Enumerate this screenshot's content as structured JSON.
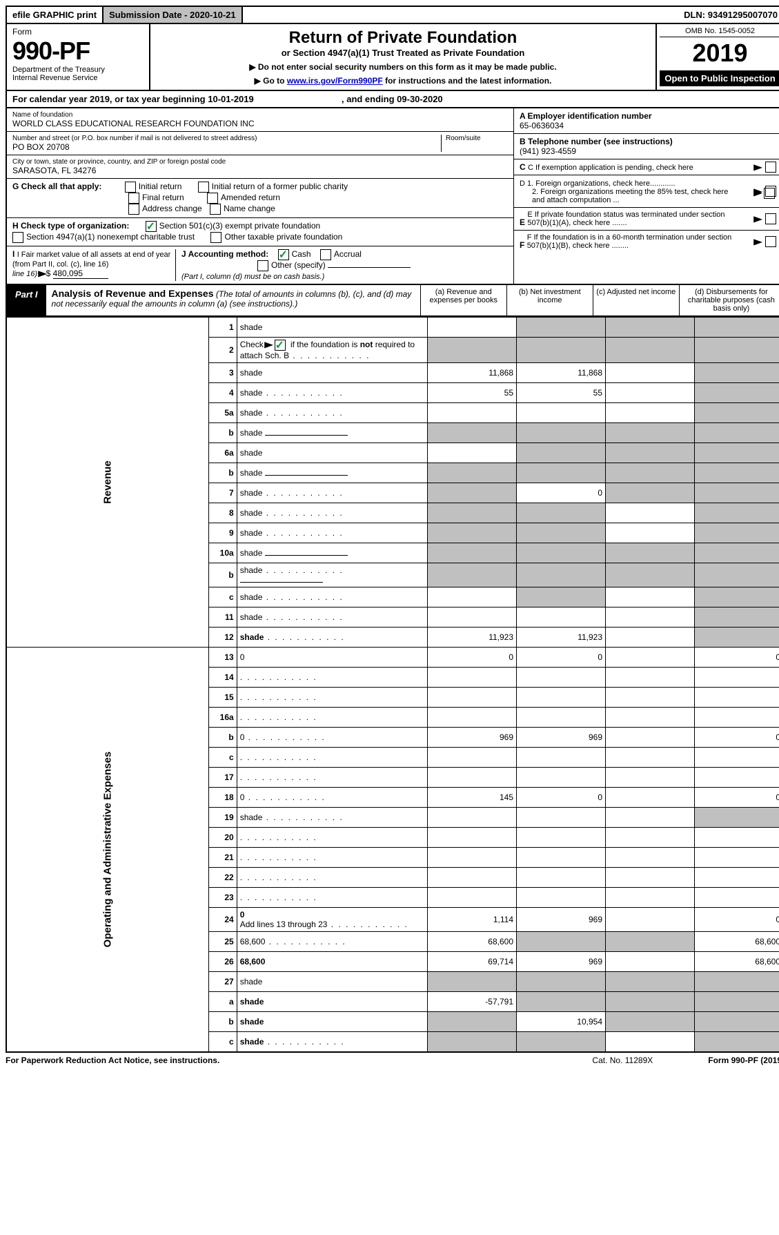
{
  "top": {
    "efile": "efile GRAPHIC print",
    "subdate_label": "Submission Date - ",
    "subdate": "2020-10-21",
    "dln_label": "DLN: ",
    "dln": "93491295007070"
  },
  "header": {
    "form_label": "Form",
    "form_num": "990-PF",
    "dept1": "Department of the Treasury",
    "dept2": "Internal Revenue Service",
    "title": "Return of Private Foundation",
    "sub": "or Section 4947(a)(1) Trust Treated as Private Foundation",
    "instr1": "▶ Do not enter social security numbers on this form as it may be made public.",
    "instr2_pre": "▶ Go to ",
    "instr2_link": "www.irs.gov/Form990PF",
    "instr2_post": " for instructions and the latest information.",
    "omb": "OMB No. 1545-0052",
    "year": "2019",
    "inspect": "Open to Public Inspection"
  },
  "cal": {
    "text_pre": "For calendar year 2019, or tax year beginning ",
    "begin": "10-01-2019",
    "text_mid": " , and ending ",
    "end": "09-30-2020"
  },
  "info": {
    "name_label": "Name of foundation",
    "name": "WORLD CLASS EDUCATIONAL RESEARCH FOUNDATION INC",
    "addr_label": "Number and street (or P.O. box number if mail is not delivered to street address)",
    "room_label": "Room/suite",
    "addr": "PO BOX 20708",
    "city_label": "City or town, state or province, country, and ZIP or foreign postal code",
    "city": "SARASOTA, FL  34276",
    "ein_label": "A Employer identification number",
    "ein": "65-0636034",
    "phone_label": "B Telephone number (see instructions)",
    "phone": "(941) 923-4559",
    "c_label": "C If exemption application is pending, check here",
    "g_label": "G Check all that apply:",
    "g_initial": "Initial return",
    "g_initial_fpc": "Initial return of a former public charity",
    "g_final": "Final return",
    "g_amended": "Amended return",
    "g_addr": "Address change",
    "g_name": "Name change",
    "d1": "D 1. Foreign organizations, check here............",
    "d2": "2. Foreign organizations meeting the 85% test, check here and attach computation ...",
    "h_label": "H Check type of organization:",
    "h_501c3": "Section 501(c)(3) exempt private foundation",
    "h_4947": "Section 4947(a)(1) nonexempt charitable trust",
    "h_other": "Other taxable private foundation",
    "e_label": "E If private foundation status was terminated under section 507(b)(1)(A), check here .......",
    "i_label": "I Fair market value of all assets at end of year (from Part II, col. (c), line 16)",
    "i_val": "480,095",
    "j_label": "J Accounting method:",
    "j_cash": "Cash",
    "j_accrual": "Accrual",
    "j_other": "Other (specify)",
    "j_note": "(Part I, column (d) must be on cash basis.)",
    "f_label": "F If the foundation is in a 60-month termination under section 507(b)(1)(B), check here ........"
  },
  "part1": {
    "badge": "Part I",
    "title": "Analysis of Revenue and Expenses",
    "note": " (The total of amounts in columns (b), (c), and (d) may not necessarily equal the amounts in column (a) (see instructions).)",
    "col_a": "(a)   Revenue and expenses per books",
    "col_b": "(b)  Net investment income",
    "col_c": "(c)  Adjusted net income",
    "col_d": "(d)  Disbursements for charitable purposes (cash basis only)"
  },
  "sections": {
    "revenue": "Revenue",
    "opadmin": "Operating and Administrative Expenses"
  },
  "rows": [
    {
      "n": "1",
      "d": "shade",
      "a": "",
      "b": "shade",
      "c": "shade"
    },
    {
      "n": "2",
      "d": "shade",
      "dots": true,
      "a": "shade",
      "b": "shade",
      "c": "shade",
      "bold_not": true
    },
    {
      "n": "3",
      "d": "shade",
      "a": "11,868",
      "b": "11,868",
      "c": ""
    },
    {
      "n": "4",
      "d": "shade",
      "dots": true,
      "a": "55",
      "b": "55",
      "c": ""
    },
    {
      "n": "5a",
      "d": "shade",
      "dots": true,
      "a": "",
      "b": "",
      "c": ""
    },
    {
      "n": "b",
      "d": "shade",
      "underline": true,
      "a": "shade",
      "b": "shade",
      "c": "shade"
    },
    {
      "n": "6a",
      "d": "shade",
      "a": "",
      "b": "shade",
      "c": "shade"
    },
    {
      "n": "b",
      "d": "shade",
      "underline": true,
      "a": "shade",
      "b": "shade",
      "c": "shade"
    },
    {
      "n": "7",
      "d": "shade",
      "dots": true,
      "a": "shade",
      "b": "0",
      "c": "shade"
    },
    {
      "n": "8",
      "d": "shade",
      "dots": true,
      "a": "shade",
      "b": "shade",
      "c": ""
    },
    {
      "n": "9",
      "d": "shade",
      "dots": true,
      "a": "shade",
      "b": "shade",
      "c": ""
    },
    {
      "n": "10a",
      "d": "shade",
      "underline": true,
      "a": "shade",
      "b": "shade",
      "c": "shade"
    },
    {
      "n": "b",
      "d": "shade",
      "dots": true,
      "underline": true,
      "a": "shade",
      "b": "shade",
      "c": "shade"
    },
    {
      "n": "c",
      "d": "shade",
      "dots": true,
      "a": "",
      "b": "shade",
      "c": ""
    },
    {
      "n": "11",
      "d": "shade",
      "dots": true,
      "a": "",
      "b": "",
      "c": ""
    },
    {
      "n": "12",
      "d": "shade",
      "dots": true,
      "bold": true,
      "a": "11,923",
      "b": "11,923",
      "c": ""
    }
  ],
  "rows2": [
    {
      "n": "13",
      "d": "0",
      "a": "0",
      "b": "0",
      "c": ""
    },
    {
      "n": "14",
      "d": "",
      "dots": true,
      "a": "",
      "b": "",
      "c": ""
    },
    {
      "n": "15",
      "d": "",
      "dots": true,
      "a": "",
      "b": "",
      "c": ""
    },
    {
      "n": "16a",
      "d": "",
      "dots": true,
      "a": "",
      "b": "",
      "c": ""
    },
    {
      "n": "b",
      "d": "0",
      "dots": true,
      "a": "969",
      "b": "969",
      "c": ""
    },
    {
      "n": "c",
      "d": "",
      "dots": true,
      "a": "",
      "b": "",
      "c": ""
    },
    {
      "n": "17",
      "d": "",
      "dots": true,
      "a": "",
      "b": "",
      "c": ""
    },
    {
      "n": "18",
      "d": "0",
      "dots": true,
      "a": "145",
      "b": "0",
      "c": ""
    },
    {
      "n": "19",
      "d": "shade",
      "dots": true,
      "a": "",
      "b": "",
      "c": ""
    },
    {
      "n": "20",
      "d": "",
      "dots": true,
      "a": "",
      "b": "",
      "c": ""
    },
    {
      "n": "21",
      "d": "",
      "dots": true,
      "a": "",
      "b": "",
      "c": ""
    },
    {
      "n": "22",
      "d": "",
      "dots": true,
      "a": "",
      "b": "",
      "c": ""
    },
    {
      "n": "23",
      "d": "",
      "dots": true,
      "a": "",
      "b": "",
      "c": ""
    },
    {
      "n": "24",
      "d": "0",
      "d2": "Add lines 13 through 23",
      "dots": true,
      "bold": true,
      "a": "1,114",
      "b": "969",
      "c": ""
    },
    {
      "n": "25",
      "d": "68,600",
      "dots": true,
      "a": "68,600",
      "b": "shade",
      "c": "shade"
    },
    {
      "n": "26",
      "d": "68,600",
      "bold": true,
      "a": "69,714",
      "b": "969",
      "c": ""
    }
  ],
  "rows3": [
    {
      "n": "27",
      "d": "shade",
      "a": "shade",
      "b": "shade",
      "c": "shade"
    },
    {
      "n": "a",
      "d": "shade",
      "bold": true,
      "a": "-57,791",
      "b": "shade",
      "c": "shade"
    },
    {
      "n": "b",
      "d": "shade",
      "bold": true,
      "a": "shade",
      "b": "10,954",
      "c": "shade"
    },
    {
      "n": "c",
      "d": "shade",
      "dots": true,
      "bold": true,
      "a": "shade",
      "b": "shade",
      "c": ""
    }
  ],
  "footer": {
    "left": "For Paperwork Reduction Act Notice, see instructions.",
    "mid": "Cat. No. 11289X",
    "right": "Form 990-PF (2019)"
  }
}
